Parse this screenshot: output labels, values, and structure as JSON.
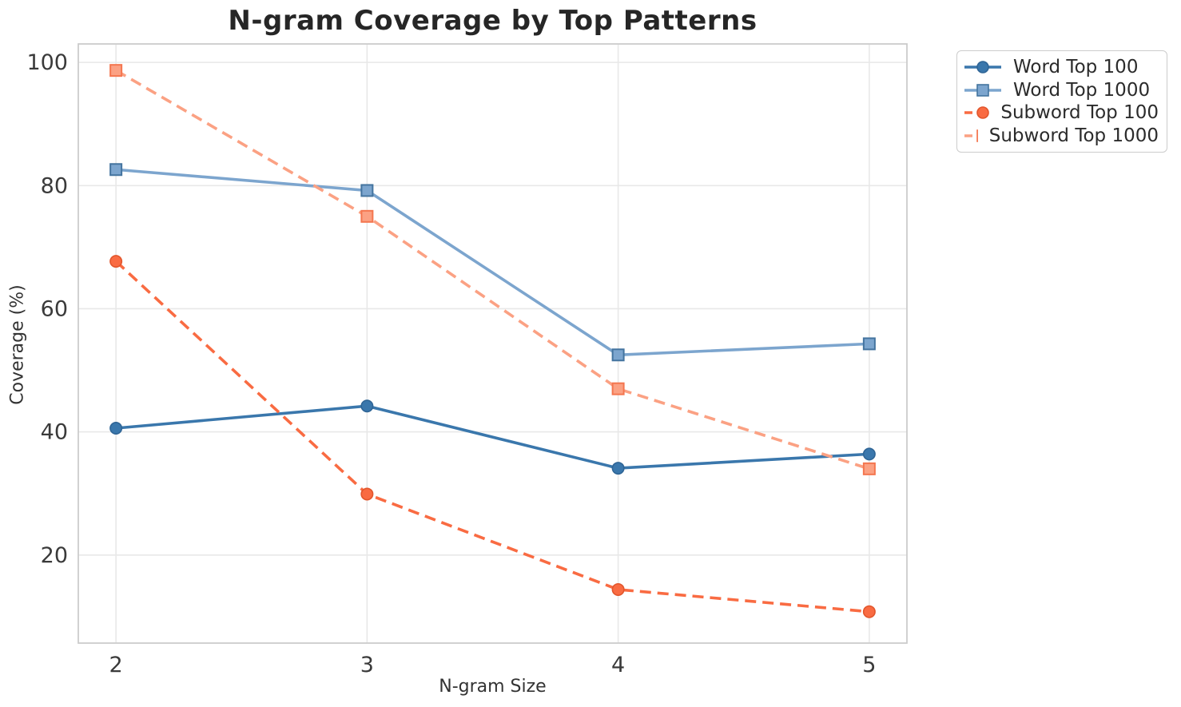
{
  "chart_data": {
    "type": "line",
    "title": "N-gram Coverage by Top Patterns",
    "xlabel": "N-gram Size",
    "ylabel": "Coverage (%)",
    "x": [
      2,
      3,
      4,
      5
    ],
    "xticks": [
      "2",
      "3",
      "4",
      "5"
    ],
    "yticks": [
      20,
      40,
      60,
      80,
      100
    ],
    "xlim": [
      1.85,
      5.15
    ],
    "ylim": [
      5.7,
      103.0
    ],
    "grid": true,
    "legend_position": "upper-right-outside",
    "series": [
      {
        "name": "Word Top 100",
        "values": [
          40.6,
          44.2,
          34.1,
          36.4
        ],
        "color": "#3a77ac",
        "marker_edge": "#2f6596",
        "line_style": "solid",
        "marker": "circle"
      },
      {
        "name": "Word Top 1000",
        "values": [
          82.6,
          79.2,
          52.5,
          54.3
        ],
        "color": "#7ca5ce",
        "marker_edge": "#44749f",
        "line_style": "solid",
        "marker": "square"
      },
      {
        "name": "Subword Top 100",
        "values": [
          67.7,
          29.9,
          14.4,
          10.8
        ],
        "color": "#f96b42",
        "marker_edge": "#e2562c",
        "line_style": "dashed",
        "marker": "circle"
      },
      {
        "name": "Subword Top 1000",
        "values": [
          98.7,
          75.0,
          47.0,
          34.0
        ],
        "color": "#fba183",
        "marker_edge": "#f4764f",
        "line_style": "dashed",
        "marker": "square"
      }
    ]
  },
  "styles": {
    "grid_color": "#e8e8e8",
    "spine_color": "#cccccc",
    "tick_label_color": "#3a3a3a",
    "title_color": "#262626",
    "background": "#ffffff"
  }
}
